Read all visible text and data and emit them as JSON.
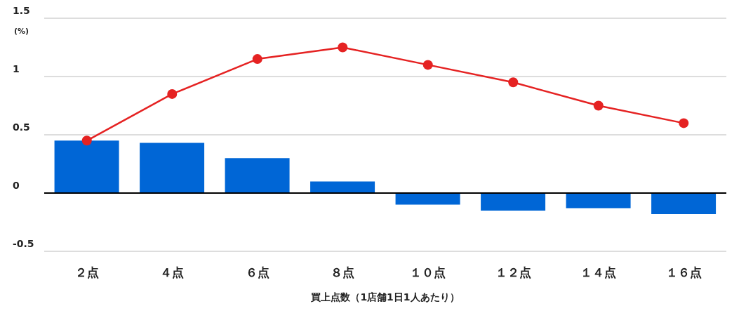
{
  "chart_data": {
    "type": "bar",
    "categories": [
      "２点",
      "４点",
      "６点",
      "８点",
      "１０点",
      "１２点",
      "１４点",
      "１６点"
    ],
    "series": [
      {
        "color": "#0066d6",
        "values": [
          0.45,
          0.43,
          0.3,
          0.1,
          -0.1,
          -0.15,
          -0.13,
          -0.18
        ]
      },
      {
        "type": "line",
        "color": "#e52222",
        "values": [
          0.45,
          0.85,
          1.15,
          1.25,
          1.1,
          0.95,
          0.75,
          0.6
        ]
      }
    ],
    "ylabel": "(%)",
    "xlabel": "買上点数（1店舗1日1人あたり）",
    "ylim": [
      -0.5,
      1.5
    ],
    "yticks": [
      -0.5,
      0,
      0.5,
      1,
      1.5
    ],
    "grid": "y",
    "marker": "circle",
    "line_style": "solid",
    "ref_lines": [
      {
        "axis": "y",
        "value": 0,
        "color": "#000000"
      }
    ]
  }
}
